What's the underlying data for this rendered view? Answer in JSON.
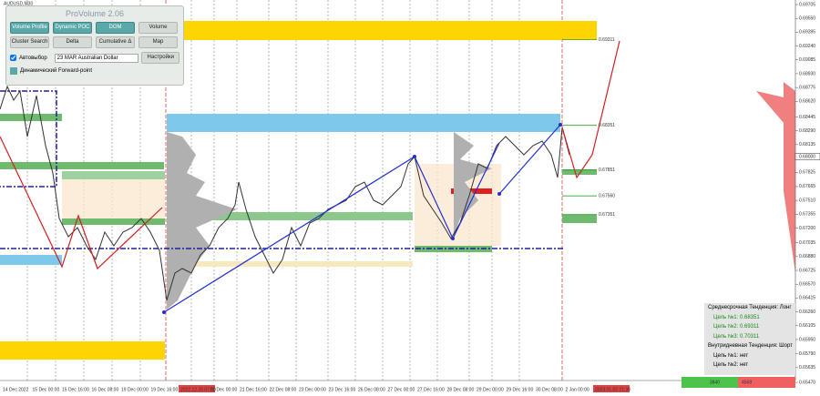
{
  "symbol": "AUDUSD,M30",
  "panel": {
    "title": "ProVolume 2.06",
    "buttons": [
      "Volume Profile",
      "Dynamic POC",
      "DOM",
      "Volume",
      "Cluster Search",
      "Delta",
      "Cumulative Δ",
      "Map"
    ],
    "auto_select": "Автовыбор",
    "instrument": "23 MAR Australian Dollar",
    "settings": "Настройки",
    "forward_point": "Динамический Forward-point"
  },
  "price_axis": {
    "ylim": [
      0.6547,
      0.69705
    ],
    "ticks": [
      {
        "value": 0.69705,
        "label": "0.69705"
      },
      {
        "value": 0.6955,
        "label": "0.69550"
      },
      {
        "value": 0.69395,
        "label": "0.69395"
      },
      {
        "value": 0.6924,
        "label": "0.69240"
      },
      {
        "value": 0.69085,
        "label": "0.69085"
      },
      {
        "value": 0.6893,
        "label": "0.68930"
      },
      {
        "value": 0.68775,
        "label": "0.68775"
      },
      {
        "value": 0.6862,
        "label": "0.68620"
      },
      {
        "value": 0.68445,
        "label": "0.68445"
      },
      {
        "value": 0.6829,
        "label": "0.68290"
      },
      {
        "value": 0.68135,
        "label": "0.68135"
      },
      {
        "value": 0.67825,
        "label": "0.67825"
      },
      {
        "value": 0.67665,
        "label": "0.67665"
      },
      {
        "value": 0.6751,
        "label": "0.67510"
      },
      {
        "value": 0.67355,
        "label": "0.67355"
      },
      {
        "value": 0.672,
        "label": "0.67200"
      },
      {
        "value": 0.67035,
        "label": "0.67035"
      },
      {
        "value": 0.6688,
        "label": "0.66880"
      },
      {
        "value": 0.66725,
        "label": "0.66725"
      },
      {
        "value": 0.6657,
        "label": "0.66570"
      },
      {
        "value": 0.66415,
        "label": "0.66415"
      },
      {
        "value": 0.6626,
        "label": "0.66260"
      },
      {
        "value": 0.66105,
        "label": "0.66105"
      },
      {
        "value": 0.6595,
        "label": "0.65950"
      },
      {
        "value": 0.6579,
        "label": "0.65790"
      },
      {
        "value": 0.65635,
        "label": "0.65635"
      },
      {
        "value": 0.6547,
        "label": "0.65470"
      }
    ],
    "current": {
      "value": 0.68,
      "label": "0.68000"
    }
  },
  "levels": [
    {
      "value": 0.69311,
      "label": "0.69311"
    },
    {
      "value": 0.68351,
      "label": "0.68351"
    },
    {
      "value": 0.67851,
      "label": "0.67851"
    },
    {
      "value": 0.6756,
      "label": "0.67560"
    },
    {
      "value": 0.67351,
      "label": "0.67351"
    }
  ],
  "time_axis": [
    "14 Dec 2022",
    "15 Dec 00:00",
    "15 Dec 16:00",
    "16 Dec 08:00",
    "19 Dec 00:00",
    "19 Dec 16:00",
    "2022.12.20 07:00",
    "21 Dec 00:00",
    "21 Dec 16:00",
    "22 Dec 08:00",
    "23 Dec 00:00",
    "23 Dec 16:00",
    "26 Dec 08:00",
    "27 Dec 00:00",
    "27 Dec 16:00",
    "28 Dec 08:00",
    "29 Dec 00:00",
    "29 Dec 16:00",
    "30 Dec 08:00",
    "2 Jan 00:00",
    "2023.01.02 21:30"
  ],
  "info": {
    "mid_trend": "Среднесрочная Тенденция: Лонг",
    "mid_targets": [
      "Цель №1: 0.68351",
      "Цель №2: 0.69311",
      "Цель №3: 0.70311"
    ],
    "intraday_trend": "Внутридневная Тенденция: Шорт",
    "intraday_targets": [
      "Цель №1: нет",
      "Цель №2: нет"
    ]
  },
  "footer": {
    "buy": "3840",
    "sell": "4568"
  }
}
